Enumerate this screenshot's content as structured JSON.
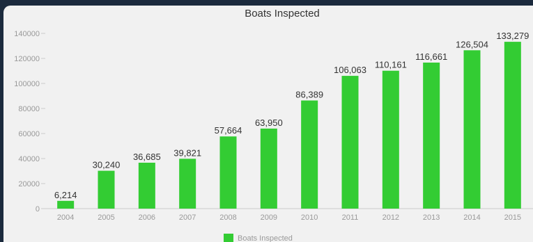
{
  "chart_data": {
    "type": "bar",
    "title": "Boats Inspected",
    "xlabel": "",
    "ylabel": "",
    "categories": [
      "2004",
      "2005",
      "2006",
      "2007",
      "2008",
      "2009",
      "2010",
      "2011",
      "2012",
      "2013",
      "2014",
      "2015"
    ],
    "series": [
      {
        "name": "Boats Inspected",
        "values": [
          6214,
          30240,
          36685,
          39821,
          57664,
          63950,
          86389,
          106063,
          110161,
          116661,
          126504,
          133279
        ],
        "labels": [
          "6,214",
          "30,240",
          "36,685",
          "39,821",
          "57,664",
          "63,950",
          "86,389",
          "106,063",
          "110,161",
          "116,661",
          "126,504",
          "133,279"
        ]
      }
    ],
    "y_ticks": [
      0,
      20000,
      40000,
      60000,
      80000,
      100000,
      120000,
      140000
    ],
    "ylim": [
      0,
      140000
    ],
    "grid": false,
    "legend_position": "bottom-center",
    "colors": {
      "bar": "#33cc33",
      "background": "#f1f1f1",
      "frame": "#1b2a3d",
      "text": "#333333",
      "tick_text": "#999999"
    }
  }
}
